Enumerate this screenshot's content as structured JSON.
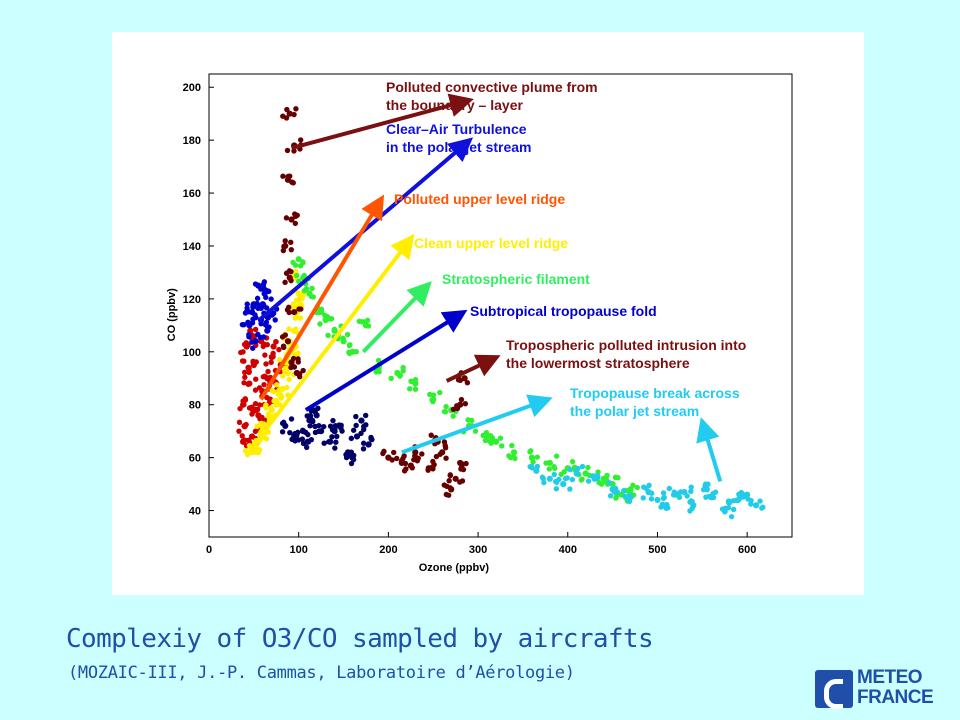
{
  "caption": {
    "title": "Complexiy of O3/CO sampled by aircrafts",
    "subtitle": "(MOZAIC-III, J.-P. Cammas, Laboratoire d’Aérologie)"
  },
  "logo": {
    "line1": "METEO",
    "line2": "FRANCE"
  },
  "chart_data": {
    "type": "scatter",
    "xlabel": "Ozone (ppbv)",
    "ylabel": "CO (ppbv)",
    "xlim": [
      0,
      650
    ],
    "ylim": [
      30,
      205
    ],
    "xticks": [
      0,
      100,
      200,
      300,
      400,
      500,
      600
    ],
    "yticks": [
      40,
      60,
      80,
      100,
      120,
      140,
      160,
      180,
      200
    ],
    "grid": false,
    "legend": "none",
    "series": [
      {
        "color": "#d00000",
        "points": [
          [
            40,
            72
          ],
          [
            38,
            80
          ],
          [
            45,
            88
          ],
          [
            50,
            95
          ],
          [
            42,
            102
          ],
          [
            55,
            76
          ],
          [
            60,
            85
          ],
          [
            48,
            68
          ],
          [
            65,
            90
          ],
          [
            70,
            98
          ],
          [
            58,
            104
          ],
          [
            44,
            94
          ],
          [
            52,
            78
          ],
          [
            62,
            72
          ],
          [
            68,
            82
          ],
          [
            75,
            88
          ],
          [
            80,
            95
          ],
          [
            46,
            108
          ],
          [
            38,
            66
          ],
          [
            72,
            102
          ]
        ]
      },
      {
        "color": "#ffee00",
        "points": [
          [
            48,
            62
          ],
          [
            55,
            66
          ],
          [
            60,
            70
          ],
          [
            68,
            74
          ],
          [
            75,
            80
          ],
          [
            82,
            86
          ],
          [
            88,
            92
          ],
          [
            92,
            100
          ],
          [
            95,
            108
          ],
          [
            98,
            115
          ],
          [
            100,
            122
          ],
          [
            96,
            128
          ],
          [
            102,
            118
          ],
          [
            90,
            104
          ],
          [
            86,
            96
          ],
          [
            78,
            84
          ],
          [
            70,
            78
          ],
          [
            64,
            72
          ],
          [
            58,
            68
          ],
          [
            52,
            64
          ]
        ]
      },
      {
        "color": "#0000cc",
        "points": [
          [
            45,
            110
          ],
          [
            50,
            118
          ],
          [
            55,
            125
          ],
          [
            60,
            118
          ],
          [
            65,
            108
          ],
          [
            70,
            114
          ],
          [
            52,
            104
          ],
          [
            48,
            115
          ],
          [
            58,
            112
          ],
          [
            62,
            122
          ]
        ]
      },
      {
        "color": "#000066",
        "points": [
          [
            85,
            72
          ],
          [
            95,
            68
          ],
          [
            105,
            70
          ],
          [
            115,
            74
          ],
          [
            125,
            70
          ],
          [
            135,
            66
          ],
          [
            145,
            72
          ],
          [
            155,
            62
          ],
          [
            165,
            68
          ],
          [
            170,
            74
          ],
          [
            178,
            65
          ],
          [
            110,
            66
          ],
          [
            120,
            76
          ],
          [
            140,
            70
          ],
          [
            160,
            60
          ]
        ]
      },
      {
        "color": "#30ee30",
        "points": [
          [
            100,
            135
          ],
          [
            105,
            128
          ],
          [
            112,
            122
          ],
          [
            120,
            115
          ],
          [
            130,
            112
          ],
          [
            140,
            108
          ],
          [
            150,
            104
          ],
          [
            160,
            100
          ],
          [
            175,
            110
          ],
          [
            190,
            95
          ],
          [
            210,
            92
          ],
          [
            230,
            88
          ],
          [
            250,
            82
          ],
          [
            270,
            78
          ],
          [
            290,
            72
          ],
          [
            310,
            68
          ],
          [
            340,
            62
          ],
          [
            380,
            58
          ],
          [
            420,
            54
          ],
          [
            450,
            50
          ],
          [
            470,
            48
          ],
          [
            400,
            56
          ],
          [
            440,
            52
          ],
          [
            460,
            46
          ],
          [
            360,
            60
          ],
          [
            320,
            66
          ]
        ]
      },
      {
        "color": "#660000",
        "points": [
          [
            90,
            190
          ],
          [
            95,
            178
          ],
          [
            88,
            165
          ],
          [
            92,
            150
          ],
          [
            85,
            140
          ],
          [
            90,
            128
          ],
          [
            95,
            115
          ],
          [
            88,
            104
          ],
          [
            92,
            96
          ],
          [
            98,
            92
          ],
          [
            200,
            60
          ],
          [
            215,
            58
          ],
          [
            230,
            62
          ],
          [
            245,
            56
          ],
          [
            260,
            62
          ],
          [
            275,
            52
          ],
          [
            280,
            58
          ],
          [
            285,
            90
          ],
          [
            280,
            80
          ],
          [
            270,
            48
          ],
          [
            255,
            66
          ],
          [
            225,
            57
          ]
        ]
      },
      {
        "color": "#22cce8",
        "points": [
          [
            365,
            55
          ],
          [
            380,
            52
          ],
          [
            395,
            50
          ],
          [
            410,
            54
          ],
          [
            430,
            52
          ],
          [
            450,
            48
          ],
          [
            470,
            45
          ],
          [
            500,
            44
          ],
          [
            520,
            46
          ],
          [
            540,
            42
          ],
          [
            560,
            45
          ],
          [
            580,
            43
          ],
          [
            600,
            46
          ],
          [
            610,
            42
          ],
          [
            555,
            48
          ],
          [
            575,
            40
          ],
          [
            510,
            41
          ],
          [
            530,
            47
          ],
          [
            590,
            44
          ],
          [
            490,
            47
          ]
        ]
      }
    ],
    "annotations": [
      {
        "color": "#7a1010",
        "lines": [
          "Polluted convective plume from",
          "the boundary – layer"
        ]
      },
      {
        "color": "#1010dd",
        "lines": [
          "Clear–Air Turbulence",
          "in the polar jet stream"
        ]
      },
      {
        "color": "#ff5500",
        "lines": [
          "Polluted upper level ridge"
        ]
      },
      {
        "color": "#ffee00",
        "lines": [
          "Clean upper level ridge"
        ]
      },
      {
        "color": "#30ee60",
        "lines": [
          "Stratospheric filament"
        ]
      },
      {
        "color": "#0000cc",
        "lines": [
          "Subtropical tropopause fold"
        ]
      },
      {
        "color": "#7a1010",
        "lines": [
          "Tropospheric polluted intrusion into",
          "the lowermost stratosphere"
        ]
      },
      {
        "color": "#22ccf0",
        "lines": [
          "Tropopause break across",
          "the polar jet stream"
        ]
      }
    ]
  }
}
